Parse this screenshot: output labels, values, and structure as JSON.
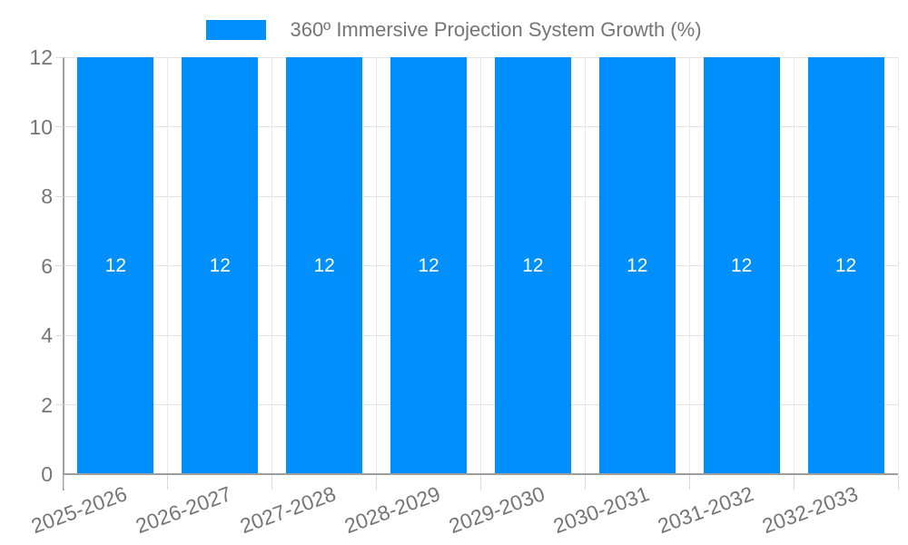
{
  "legend": {
    "position": "top",
    "items": [
      {
        "label": "360º Immersive Projection System Growth (%)",
        "swatch_color": "#008ffb"
      }
    ]
  },
  "colors": {
    "bar": "#008ffb",
    "grid_horizontal": "#e3e3e3",
    "grid_vertical": "#e9e9e9",
    "axis_line": "#9e9e9e",
    "tick_text": "#757575",
    "legend_text": "#757575",
    "bar_label_text": "#ffffff",
    "background": "#ffffff"
  },
  "chart_data": {
    "type": "bar",
    "title": "",
    "xlabel": "",
    "ylabel": "",
    "categories": [
      "2025-2026",
      "2026-2027",
      "2027-2028",
      "2028-2029",
      "2029-2030",
      "2030-2031",
      "2031-2032",
      "2032-2033"
    ],
    "series": [
      {
        "name": "360º Immersive Projection System Growth (%)",
        "color": "#008ffb",
        "values": [
          12,
          12,
          12,
          12,
          12,
          12,
          12,
          12
        ]
      }
    ],
    "bar_value_labels": [
      "12",
      "12",
      "12",
      "12",
      "12",
      "12",
      "12",
      "12"
    ],
    "ylim": [
      0,
      12
    ],
    "yticks": [
      0,
      2,
      4,
      6,
      8,
      10,
      12
    ],
    "grid": true,
    "legend_position": "top",
    "x_label_rotation_deg": -20
  }
}
